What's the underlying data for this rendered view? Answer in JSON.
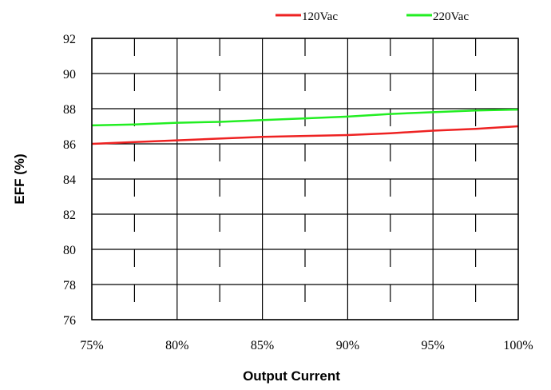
{
  "chart_data": {
    "type": "line",
    "xlabel": "Output Current",
    "ylabel": "EFF (%)",
    "x": [
      75,
      77.5,
      80,
      82.5,
      85,
      87.5,
      90,
      92.5,
      95,
      97.5,
      100
    ],
    "x_tick_labels": [
      "75%",
      "80%",
      "85%",
      "90%",
      "95%",
      "100%"
    ],
    "x_tick_values": [
      75,
      80,
      85,
      90,
      95,
      100
    ],
    "y_tick_values": [
      76,
      78,
      80,
      82,
      84,
      86,
      88,
      90,
      92
    ],
    "y_tick_labels": [
      "76",
      "78",
      "80",
      "82",
      "84",
      "86",
      "88",
      "90",
      "92"
    ],
    "xlim": [
      75,
      100
    ],
    "ylim": [
      76,
      92
    ],
    "grid": true,
    "legend_position": "top-right",
    "series": [
      {
        "name": "120Vac",
        "color": "#ee2222",
        "values": [
          86.0,
          86.1,
          86.2,
          86.3,
          86.4,
          86.45,
          86.5,
          86.6,
          86.75,
          86.85,
          87.0
        ]
      },
      {
        "name": "220Vac",
        "color": "#22ee22",
        "values": [
          87.05,
          87.1,
          87.2,
          87.25,
          87.35,
          87.45,
          87.55,
          87.7,
          87.8,
          87.9,
          87.95
        ]
      }
    ]
  }
}
